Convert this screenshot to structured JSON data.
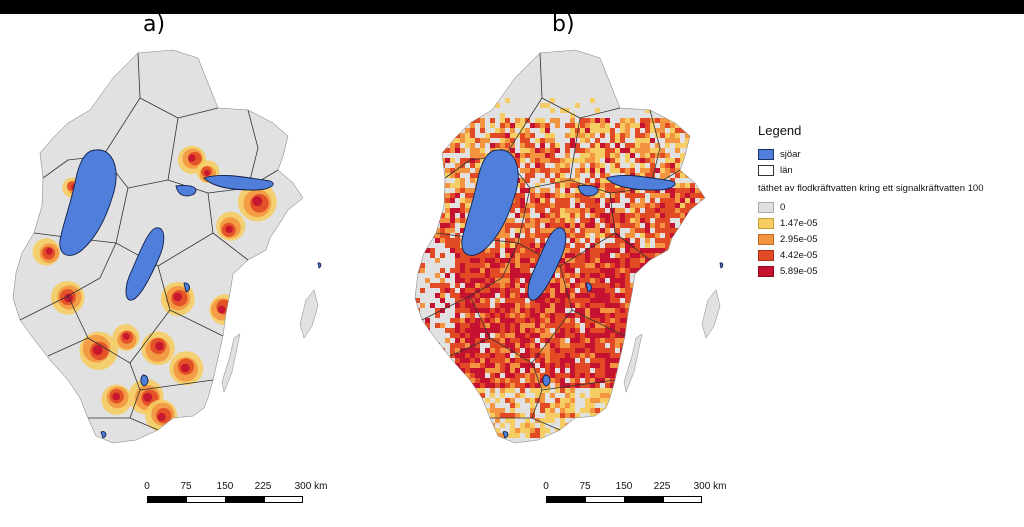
{
  "panels": [
    {
      "label": "a)",
      "pattern": "hotspots"
    },
    {
      "label": "b)",
      "pattern": "dense"
    }
  ],
  "legend": {
    "title": "Legend",
    "items": [
      {
        "label": "sjöar",
        "color": "#4f7fdb"
      },
      {
        "label": "län",
        "color": "#ffffff"
      }
    ],
    "density_title": "täthet av flodkräftvatten kring ett signalkräftvatten 100",
    "classes": [
      {
        "label": "0",
        "color": "#e1e1e1"
      },
      {
        "label": "1.47e-05",
        "color": "#f6cd63"
      },
      {
        "label": "2.95e-05",
        "color": "#f39540"
      },
      {
        "label": "4.42e-05",
        "color": "#e24a25"
      },
      {
        "label": "5.89e-05",
        "color": "#c41230"
      }
    ]
  },
  "scale": {
    "ticks": [
      "0",
      "75",
      "150",
      "225",
      "300 km"
    ]
  },
  "colors": {
    "land": "#e1e1e1",
    "lake": "#4f7fdb",
    "border": "#333333",
    "topbar": "#000000"
  }
}
